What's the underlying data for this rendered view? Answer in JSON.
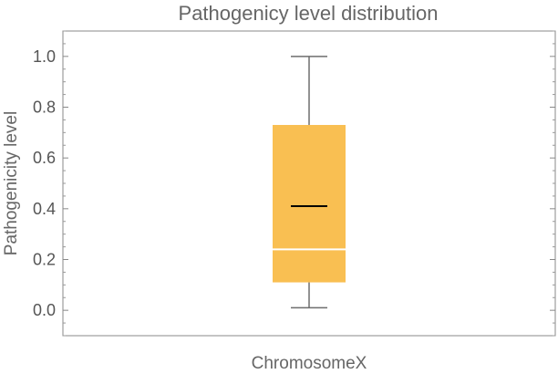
{
  "chart_data": {
    "type": "box",
    "title": "Pathogenicy level distribution",
    "xlabel": "",
    "ylabel": "Pathogenicity level",
    "categories": [
      "ChromosomeX"
    ],
    "ylim": [
      -0.1,
      1.1
    ],
    "yticks": [
      0.0,
      0.2,
      0.4,
      0.6,
      0.8,
      1.0
    ],
    "ytick_labels": [
      "0.0",
      "0.2",
      "0.4",
      "0.6",
      "0.8",
      "1.0"
    ],
    "boxes": [
      {
        "category": "ChromosomeX",
        "min": 0.01,
        "q1": 0.11,
        "median": 0.24,
        "mean": 0.41,
        "q3": 0.73,
        "max": 1.0
      }
    ],
    "grid": false,
    "colors": {
      "box_fill": "#F9BF52",
      "whisker": "#6E6E6E",
      "median": "#FFFFFF",
      "mean": "#000000",
      "frame": "#888888"
    }
  }
}
